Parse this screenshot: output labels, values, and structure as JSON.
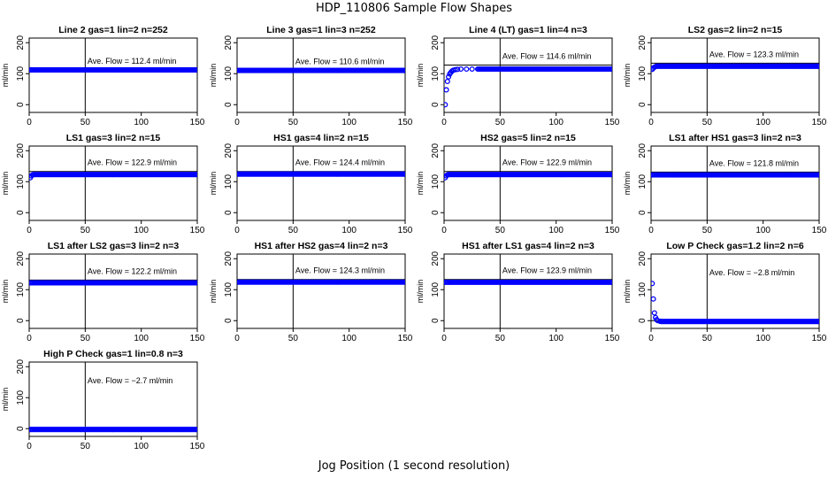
{
  "figure": {
    "title": "HDP_110806  Sample Flow Shapes",
    "xlabel": "Jog Position (1 second resolution)",
    "ylabel": "ml/min",
    "point_color": "#0000ff",
    "xticks": [
      0,
      50,
      100,
      150
    ],
    "yticks": [
      0,
      100,
      200
    ],
    "ave_prefix": "Ave. Flow = ",
    "ave_unit": "ml/min"
  },
  "chart_data": [
    {
      "type": "scatter",
      "title": "Line 2 gas=1 lin=2 n=252",
      "ave_flow": "112.4",
      "steady": 112.4,
      "ref_line": 112.4,
      "vline": 50,
      "xlim": [
        0,
        150
      ],
      "ylim": [
        -25,
        215
      ],
      "x": [
        1,
        150
      ],
      "y": [
        112.4,
        112.4
      ]
    },
    {
      "type": "scatter",
      "title": "Line 3 gas=1 lin=3 n=252",
      "ave_flow": "110.6",
      "steady": 110.6,
      "ref_line": 110.6,
      "vline": 50,
      "xlim": [
        0,
        150
      ],
      "ylim": [
        -25,
        215
      ],
      "x": [
        1,
        150
      ],
      "y": [
        110.6,
        110.6
      ]
    },
    {
      "type": "scatter",
      "title": "Line 4 (LT) gas=1 lin=4 n=3",
      "ave_flow": "114.6",
      "steady": 115,
      "ref_line": 128,
      "vline": 50,
      "xlim": [
        0,
        150
      ],
      "ylim": [
        -25,
        215
      ],
      "x": [
        1,
        2,
        3,
        4,
        5,
        6,
        7,
        8,
        10,
        12,
        15,
        20,
        25,
        30,
        150
      ],
      "y": [
        0,
        48,
        75,
        90,
        99,
        104,
        108,
        111,
        113,
        114,
        115,
        115,
        115,
        115,
        115
      ]
    },
    {
      "type": "scatter",
      "title": "LS2 gas=2 lin=2 n=15",
      "ave_flow": "123.3",
      "steady": 124,
      "ref_line": 134,
      "vline": 50,
      "xlim": [
        0,
        150
      ],
      "ylim": [
        -25,
        215
      ],
      "x": [
        1,
        2,
        3,
        4,
        150
      ],
      "y": [
        114,
        118,
        121,
        123,
        124
      ]
    },
    {
      "type": "scatter",
      "title": "LS1 gas=3 lin=2 n=15",
      "ave_flow": "122.9",
      "steady": 123,
      "ref_line": 133,
      "vline": 50,
      "xlim": [
        0,
        150
      ],
      "ylim": [
        -25,
        215
      ],
      "x": [
        1,
        2,
        3,
        150
      ],
      "y": [
        113,
        119,
        122,
        123
      ]
    },
    {
      "type": "scatter",
      "title": "HS1 gas=4 lin=2 n=15",
      "ave_flow": "124.4",
      "steady": 124.4,
      "ref_line": 133,
      "vline": 50,
      "xlim": [
        0,
        150
      ],
      "ylim": [
        -25,
        215
      ],
      "x": [
        1,
        150
      ],
      "y": [
        124.4,
        124.4
      ]
    },
    {
      "type": "scatter",
      "title": "HS2 gas=5 lin=2 n=15",
      "ave_flow": "122.9",
      "steady": 123,
      "ref_line": 133,
      "vline": 50,
      "xlim": [
        0,
        150
      ],
      "ylim": [
        -25,
        215
      ],
      "x": [
        1,
        2,
        3,
        150
      ],
      "y": [
        113,
        119,
        122,
        123
      ]
    },
    {
      "type": "scatter",
      "title": "LS1 after HS1 gas=3 lin=2 n=3",
      "ave_flow": "121.8",
      "steady": 121.8,
      "ref_line": 131,
      "vline": 50,
      "xlim": [
        0,
        150
      ],
      "ylim": [
        -25,
        215
      ],
      "x": [
        1,
        150
      ],
      "y": [
        121.8,
        121.8
      ]
    },
    {
      "type": "scatter",
      "title": "LS1 after LS2 gas=3 lin=2 n=3",
      "ave_flow": "122.2",
      "steady": 122.2,
      "ref_line": 131,
      "vline": 50,
      "xlim": [
        0,
        150
      ],
      "ylim": [
        -25,
        215
      ],
      "x": [
        1,
        150
      ],
      "y": [
        122.2,
        122.2
      ]
    },
    {
      "type": "scatter",
      "title": "HS1 after HS2 gas=4 lin=2 n=3",
      "ave_flow": "124.3",
      "steady": 124.3,
      "ref_line": 133,
      "vline": 50,
      "xlim": [
        0,
        150
      ],
      "ylim": [
        -25,
        215
      ],
      "x": [
        1,
        150
      ],
      "y": [
        124.3,
        124.3
      ]
    },
    {
      "type": "scatter",
      "title": "HS1 after LS1 gas=4 lin=2 n=3",
      "ave_flow": "123.9",
      "steady": 123.9,
      "ref_line": 133,
      "vline": 50,
      "xlim": [
        0,
        150
      ],
      "ylim": [
        -25,
        215
      ],
      "x": [
        1,
        150
      ],
      "y": [
        123.9,
        123.9
      ]
    },
    {
      "type": "scatter",
      "title": "Low P Check gas=1.2 lin=2 n=6",
      "ave_flow": "−2.8",
      "steady": -2.8,
      "ref_line": 0,
      "vline": 50,
      "xlim": [
        0,
        150
      ],
      "ylim": [
        -25,
        215
      ],
      "x": [
        1,
        2,
        3,
        4,
        5,
        6,
        8,
        150
      ],
      "y": [
        120,
        70,
        25,
        10,
        3,
        0,
        -2,
        -2.8
      ]
    },
    {
      "type": "scatter",
      "title": "High P Check gas=1 lin=0.8 n=3",
      "ave_flow": "−2.7",
      "steady": -2.7,
      "ref_line": 0,
      "vline": 50,
      "xlim": [
        0,
        150
      ],
      "ylim": [
        -25,
        215
      ],
      "x": [
        1,
        150
      ],
      "y": [
        -2.7,
        -2.7
      ]
    }
  ]
}
